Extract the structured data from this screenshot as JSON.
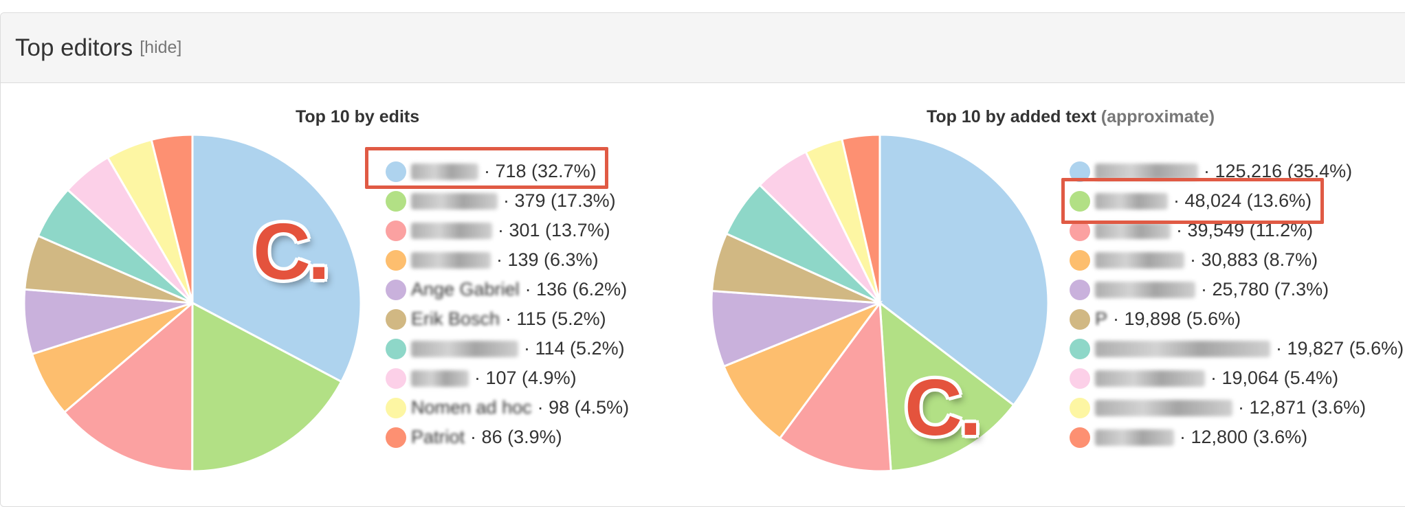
{
  "panel": {
    "title": "Top editors",
    "hide_label": "[hide]"
  },
  "badge_text": "C.",
  "highlight_color": "#e05a44",
  "chart_data": [
    {
      "type": "pie",
      "title": "Top 10 by edits",
      "title_note": "",
      "labels": [
        "",
        "",
        "",
        "",
        "Ange Gabriel",
        "Erik Bosch",
        "",
        "",
        "Nomen ad hoc",
        "Patriot"
      ],
      "values": [
        718,
        379,
        301,
        139,
        136,
        115,
        114,
        107,
        98,
        86
      ],
      "value_labels": [
        "718 (32.7%)",
        "379 (17.3%)",
        "301 (13.7%)",
        "139 (6.3%)",
        "136 (6.2%)",
        "115 (5.2%)",
        "114 (5.2%)",
        "107 (4.9%)",
        "98 (4.5%)",
        "86 (3.9%)"
      ],
      "colors": [
        "#aed3ee",
        "#b2e085",
        "#fba1a1",
        "#fdbe6e",
        "#c9b1dc",
        "#d1b883",
        "#8ed7c8",
        "#fcd0e8",
        "#fdf6a3",
        "#fd9072"
      ],
      "highlight_index": 0
    },
    {
      "type": "pie",
      "title": "Top 10 by added text",
      "title_note": "(approximate)",
      "labels": [
        "",
        "",
        "",
        "",
        "",
        "P",
        "",
        "",
        "",
        ""
      ],
      "values": [
        125216,
        48024,
        39549,
        30883,
        25780,
        19898,
        19827,
        19064,
        12871,
        12800
      ],
      "value_labels": [
        "125,216 (35.4%)",
        "48,024 (13.6%)",
        "39,549 (11.2%)",
        "30,883 (8.7%)",
        "25,780 (7.3%)",
        "19,898 (5.6%)",
        "19,827 (5.6%)",
        "19,064 (5.4%)",
        "12,871 (3.6%)",
        "12,800 (3.6%)"
      ],
      "colors": [
        "#aed3ee",
        "#b2e085",
        "#fba1a1",
        "#fdbe6e",
        "#c9b1dc",
        "#d1b883",
        "#8ed7c8",
        "#fcd0e8",
        "#fdf6a3",
        "#fd9072"
      ],
      "highlight_index": 1
    }
  ]
}
